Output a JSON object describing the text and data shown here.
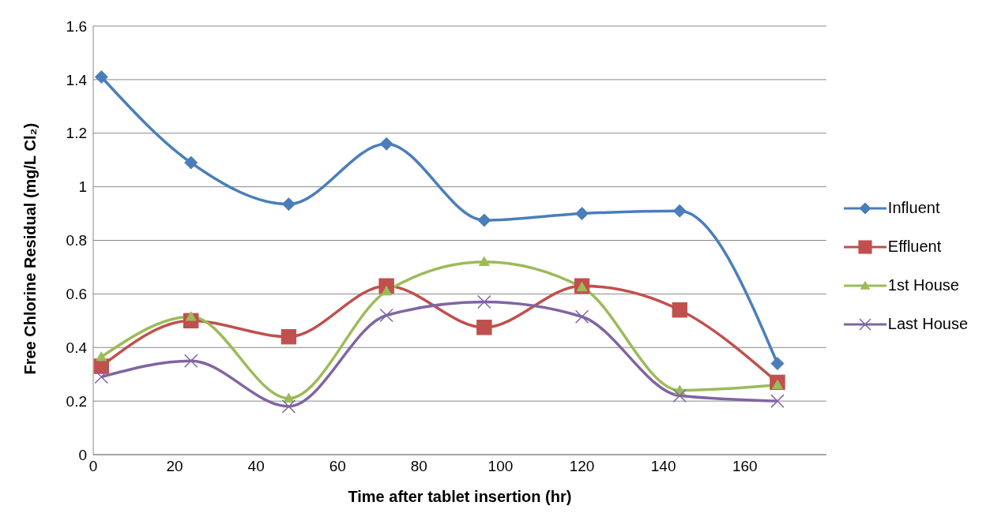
{
  "chart_data": {
    "type": "line",
    "xlabel": "Time after tablet insertion (hr)",
    "ylabel": "Free Chlorine Residual (mg/L Cl₂)",
    "x": [
      2,
      24,
      48,
      72,
      96,
      120,
      144,
      168
    ],
    "xlim": [
      0,
      180
    ],
    "xticks": [
      0,
      20,
      40,
      60,
      80,
      100,
      120,
      140,
      160
    ],
    "ylim": [
      0,
      1.6
    ],
    "yticks": [
      0,
      0.2,
      0.4,
      0.6,
      0.8,
      1,
      1.2,
      1.4,
      1.6
    ],
    "grid": "y",
    "legend": "right",
    "series": [
      {
        "name": "Influent",
        "color": "#4a7ebb",
        "marker": "diamond",
        "values": [
          1.41,
          1.09,
          0.935,
          1.16,
          0.875,
          0.9,
          0.91,
          0.34
        ]
      },
      {
        "name": "Effluent",
        "color": "#c0504d",
        "marker": "square",
        "values": [
          0.33,
          0.5,
          0.44,
          0.63,
          0.475,
          0.63,
          0.54,
          0.27
        ]
      },
      {
        "name": "1st House",
        "color": "#9bbb59",
        "marker": "triangle",
        "values": [
          0.365,
          0.515,
          0.21,
          0.61,
          0.72,
          0.625,
          0.24,
          0.26
        ]
      },
      {
        "name": "Last House",
        "color": "#8064a2",
        "marker": "cross",
        "values": [
          0.29,
          0.35,
          0.18,
          0.52,
          0.57,
          0.515,
          0.22,
          0.2
        ]
      }
    ]
  }
}
